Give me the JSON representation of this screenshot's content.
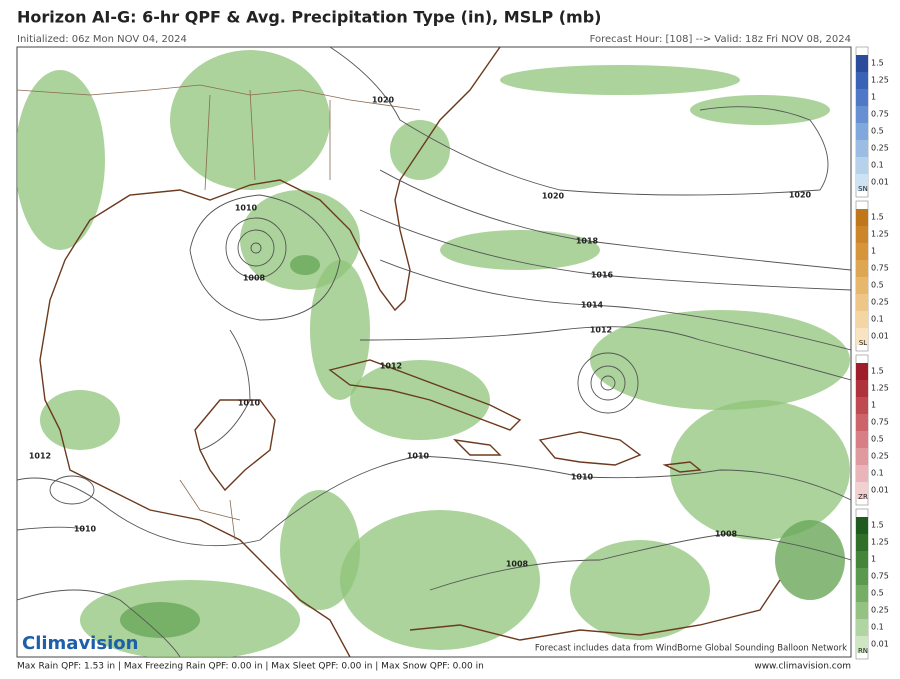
{
  "header": {
    "title": "Horizon AI-G: 6-hr QPF & Avg. Precipitation Type (in), MSLP (mb)",
    "initialized": "Initialized: 06z Mon NOV 04, 2024",
    "valid": "Forecast Hour: [108] --> Valid: 18z Fri NOV 08, 2024"
  },
  "isobars": {
    "labels": [
      "1020",
      "1020",
      "1020",
      "1018",
      "1016",
      "1014",
      "1012",
      "1010",
      "1008",
      "1012",
      "1010",
      "1012",
      "1010",
      "1010",
      "1010",
      "1008",
      "1008"
    ]
  },
  "legend": [
    {
      "code": "SN",
      "labels": [
        1.5,
        1.25,
        1,
        0.75,
        0.5,
        0.25,
        0.1,
        0.01
      ],
      "colors": [
        "#2b4c9b",
        "#3a62b5",
        "#4f78c6",
        "#6790d2",
        "#80a8dc",
        "#9bbde4",
        "#b5d1ec",
        "#cde2f3"
      ]
    },
    {
      "code": "SL",
      "labels": [
        1.5,
        1.25,
        1,
        0.75,
        0.5,
        0.25,
        0.1,
        0.01
      ],
      "colors": [
        "#c0761b",
        "#cc8529",
        "#d6953b",
        "#dfa652",
        "#e7b76c",
        "#eec788",
        "#f3d6a4",
        "#f8e4c0"
      ]
    },
    {
      "code": "ZR",
      "labels": [
        1.5,
        1.25,
        1,
        0.75,
        0.5,
        0.25,
        0.1,
        0.01
      ],
      "colors": [
        "#9e1f2b",
        "#b0323c",
        "#c04a52",
        "#cd646a",
        "#d77f84",
        "#e09a9e",
        "#e9b5b8",
        "#f2d0d2"
      ]
    },
    {
      "code": "RN",
      "labels": [
        1.5,
        1.25,
        1,
        0.75,
        0.5,
        0.25,
        0.1,
        0.01
      ],
      "colors": [
        "#1f5b1f",
        "#2f6f2a",
        "#44853a",
        "#5b9a4e",
        "#76ae66",
        "#93c282",
        "#b1d5a2",
        "#cfe6c3"
      ]
    }
  ],
  "logo": "Climavision",
  "note": "Forecast includes data from WindBorne Global Sounding Balloon Network",
  "footer": {
    "stats": "Max Rain QPF: 1.53 in  |  Max Freezing Rain QPF: 0.00 in  |  Max Sleet QPF: 0.00 in  |  Max Snow QPF: 0.00 in",
    "url": "www.climavision.com"
  }
}
